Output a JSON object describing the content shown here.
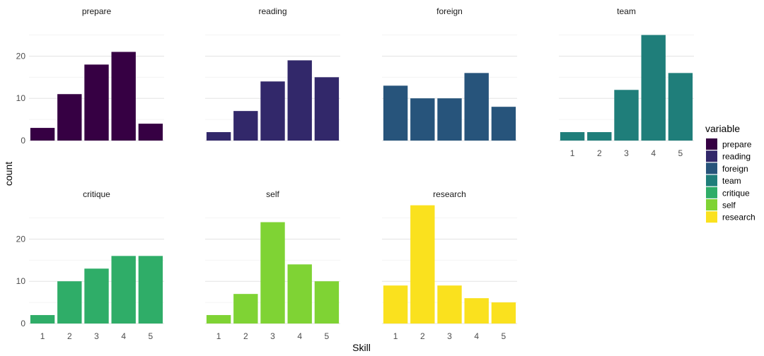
{
  "chart_data": {
    "type": "bar",
    "xlabel": "Skill",
    "ylabel": "count",
    "categories": [
      "1",
      "2",
      "3",
      "4",
      "5"
    ],
    "ylim": [
      0,
      25
    ],
    "y_ticks": [
      0,
      10,
      20
    ],
    "grid": true,
    "legend": {
      "title": "variable",
      "position": "right"
    },
    "series": [
      {
        "name": "prepare",
        "color": "#360043",
        "values": [
          3,
          11,
          18,
          21,
          4
        ]
      },
      {
        "name": "reading",
        "color": "#32286A",
        "values": [
          2,
          7,
          14,
          19,
          15
        ]
      },
      {
        "name": "foreign",
        "color": "#27547B",
        "values": [
          13,
          10,
          10,
          16,
          8
        ]
      },
      {
        "name": "team",
        "color": "#1F7E7A",
        "values": [
          2,
          2,
          12,
          25,
          16
        ]
      },
      {
        "name": "critique",
        "color": "#2FAD68",
        "values": [
          2,
          10,
          13,
          16,
          16
        ]
      },
      {
        "name": "self",
        "color": "#7FD334",
        "values": [
          2,
          7,
          24,
          14,
          10
        ]
      },
      {
        "name": "research",
        "color": "#FAE11E",
        "values": [
          9,
          28,
          9,
          6,
          5
        ]
      }
    ]
  }
}
